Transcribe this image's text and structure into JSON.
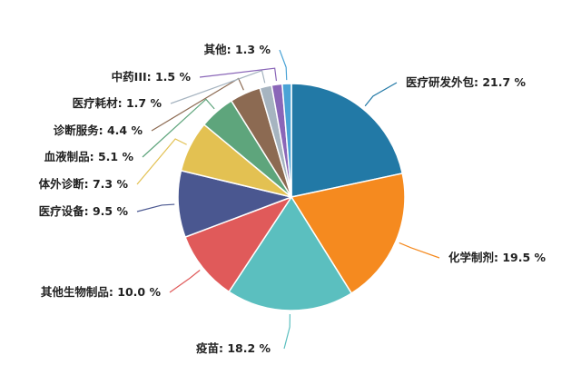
{
  "chart_data": {
    "type": "pie",
    "title": "",
    "unit": "%",
    "slices": [
      {
        "label": "医疗研发外包",
        "value": 21.7,
        "text": "医疗研发外包: 21.7 %",
        "color": "#2279a6"
      },
      {
        "label": "化学制剂",
        "value": 19.5,
        "text": "化学制剂: 19.5 %",
        "color": "#f58a1f"
      },
      {
        "label": "疫苗",
        "value": 18.2,
        "text": "疫苗: 18.2 %",
        "color": "#5bbfbf"
      },
      {
        "label": "其他生物制品",
        "value": 10.0,
        "text": "其他生物制品: 10.0 %",
        "color": "#e05a5a"
      },
      {
        "label": "医疗设备",
        "value": 9.5,
        "text": "医疗设备: 9.5 %",
        "color": "#4a5790"
      },
      {
        "label": "体外诊断",
        "value": 7.3,
        "text": "体外诊断: 7.3 %",
        "color": "#e3c152"
      },
      {
        "label": "血液制品",
        "value": 5.1,
        "text": "血液制品: 5.1 %",
        "color": "#5ea57c"
      },
      {
        "label": "诊断服务",
        "value": 4.4,
        "text": "诊断服务: 4.4 %",
        "color": "#8c6a52"
      },
      {
        "label": "医疗耗材",
        "value": 1.7,
        "text": "医疗耗材: 1.7 %",
        "color": "#a6b4c0"
      },
      {
        "label": "中药III",
        "value": 1.5,
        "text": "中药III: 1.5 %",
        "color": "#8a66b8"
      },
      {
        "label": "其他",
        "value": 1.3,
        "text": "其他: 1.3 %",
        "color": "#4aa3d6"
      }
    ]
  }
}
